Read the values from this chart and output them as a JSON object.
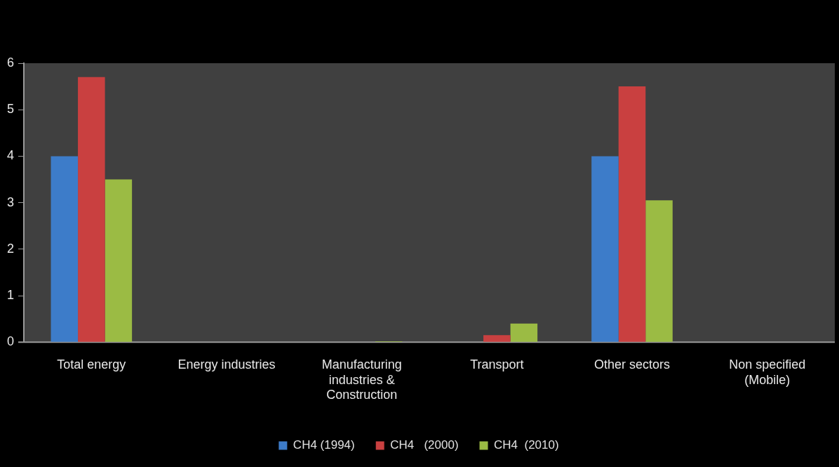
{
  "chart_data": {
    "type": "bar",
    "categories": [
      "Total energy",
      "Energy industries",
      "Manufacturing industries & Construction",
      "Transport",
      "Other sectors",
      "Non specified (Mobile)"
    ],
    "series": [
      {
        "name": "CH4 (1994)",
        "color": "#3d7cc9",
        "values": [
          4,
          0,
          0,
          0,
          4,
          0
        ]
      },
      {
        "name": "CH4   (2000)",
        "color": "#c94040",
        "values": [
          5.7,
          0,
          0,
          0.15,
          5.5,
          0
        ]
      },
      {
        "name": "CH4  (2010)",
        "color": "#9bbb44",
        "values": [
          3.5,
          0,
          0.02,
          0.4,
          3.05,
          0
        ]
      }
    ],
    "ylim": [
      0,
      6
    ],
    "yticks": [
      0,
      1,
      2,
      3,
      4,
      5,
      6
    ],
    "grid": false,
    "legend": "bottom"
  }
}
